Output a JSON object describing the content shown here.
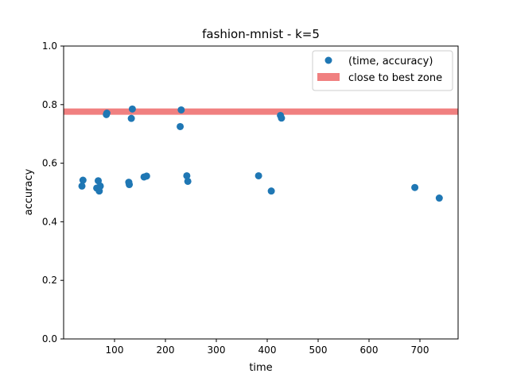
{
  "chart_data": {
    "type": "scatter",
    "title": "fashion-mnist - k=5",
    "xlabel": "time",
    "ylabel": "accuracy",
    "xlim": [
      0,
      775
    ],
    "ylim": [
      0.0,
      1.0
    ],
    "xticks": [
      100,
      200,
      300,
      400,
      500,
      600,
      700
    ],
    "yticks": [
      0.0,
      0.2,
      0.4,
      0.6,
      0.8,
      1.0
    ],
    "xtick_labels": [
      "100",
      "200",
      "300",
      "400",
      "500",
      "600",
      "700"
    ],
    "ytick_labels": [
      "0.0",
      "0.2",
      "0.4",
      "0.6",
      "0.8",
      "1.0"
    ],
    "grid": false,
    "legend_position": "top-right",
    "series": [
      {
        "name": "(time, accuracy)",
        "color": "#1f77b4",
        "points": [
          {
            "x": 36,
            "y": 0.522
          },
          {
            "x": 38,
            "y": 0.542
          },
          {
            "x": 65,
            "y": 0.515
          },
          {
            "x": 68,
            "y": 0.54
          },
          {
            "x": 70,
            "y": 0.505
          },
          {
            "x": 72,
            "y": 0.522
          },
          {
            "x": 84,
            "y": 0.766
          },
          {
            "x": 85,
            "y": 0.771
          },
          {
            "x": 128,
            "y": 0.535
          },
          {
            "x": 129,
            "y": 0.527
          },
          {
            "x": 133,
            "y": 0.753
          },
          {
            "x": 135,
            "y": 0.785
          },
          {
            "x": 158,
            "y": 0.553
          },
          {
            "x": 163,
            "y": 0.556
          },
          {
            "x": 229,
            "y": 0.725
          },
          {
            "x": 231,
            "y": 0.782
          },
          {
            "x": 242,
            "y": 0.557
          },
          {
            "x": 244,
            "y": 0.538
          },
          {
            "x": 383,
            "y": 0.557
          },
          {
            "x": 408,
            "y": 0.505
          },
          {
            "x": 426,
            "y": 0.763
          },
          {
            "x": 428,
            "y": 0.754
          },
          {
            "x": 690,
            "y": 0.517
          },
          {
            "x": 738,
            "y": 0.481
          }
        ]
      }
    ],
    "band": {
      "name": "close to best zone",
      "y": 0.776,
      "color": "#f08080"
    }
  }
}
